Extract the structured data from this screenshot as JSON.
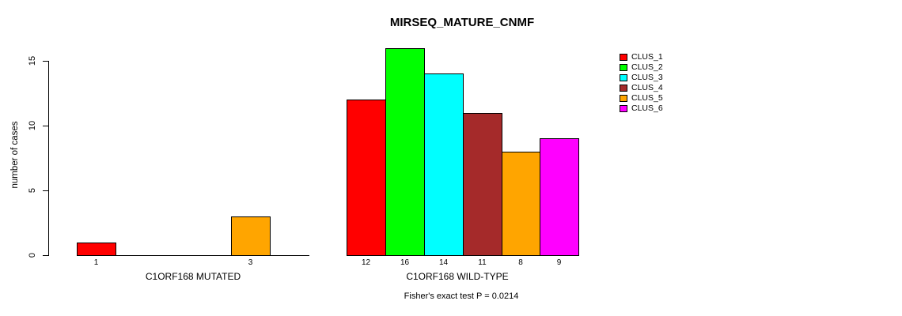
{
  "chart_data": {
    "type": "bar",
    "title": "MIRSEQ_MATURE_CNMF",
    "ylabel": "number of cases",
    "xlabel": "",
    "yticks": [
      0,
      5,
      10,
      15
    ],
    "ylim": [
      0,
      16.5
    ],
    "grid": false,
    "legend_position": "right",
    "clusters": [
      {
        "label": "CLUS_1",
        "color": "#ff0000"
      },
      {
        "label": "CLUS_2",
        "color": "#00ff00"
      },
      {
        "label": "CLUS_3",
        "color": "#00ffff"
      },
      {
        "label": "CLUS_4",
        "color": "#a52a2a"
      },
      {
        "label": "CLUS_5",
        "color": "#ffa500"
      },
      {
        "label": "CLUS_6",
        "color": "#ff00ff"
      }
    ],
    "groups": [
      {
        "label": "C1ORF168 MUTATED",
        "values": [
          1,
          0,
          0,
          0,
          3,
          0
        ]
      },
      {
        "label": "C1ORF168 WILD-TYPE",
        "values": [
          12,
          16,
          14,
          11,
          8,
          9
        ]
      }
    ],
    "footnote": "Fisher's exact test P = 0.0214",
    "colors": {
      "axis": "#000000",
      "background": "#ffffff",
      "text": "#000000"
    }
  }
}
